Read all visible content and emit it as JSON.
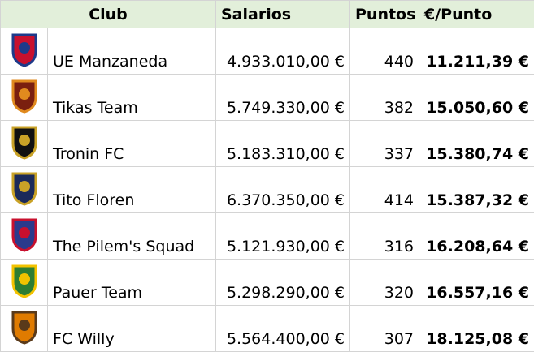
{
  "table": {
    "headers": [
      "Club",
      "Salarios",
      "Puntos",
      "€/Punto"
    ],
    "rows": [
      [
        "UE Manzaneda",
        "4.933.010,00 €",
        440,
        "11.211,39 €"
      ],
      [
        "Tikas Team",
        "5.749.330,00 €",
        382,
        "15.050,60 €"
      ],
      [
        "Tronin FC",
        "5.183.310,00 €",
        337,
        "15.380,74 €"
      ],
      [
        "Tito Floren",
        "6.370.350,00 €",
        414,
        "15.387,32 €"
      ],
      [
        "The Pilem's Squad",
        "5.121.930,00 €",
        316,
        "16.208,64 €"
      ],
      [
        "Pauer Team",
        "5.298.290,00 €",
        320,
        "16.557,16 €"
      ],
      [
        "FC Willy",
        "5.564.400,00 €",
        307,
        "18.125,08 €"
      ]
    ]
  }
}
